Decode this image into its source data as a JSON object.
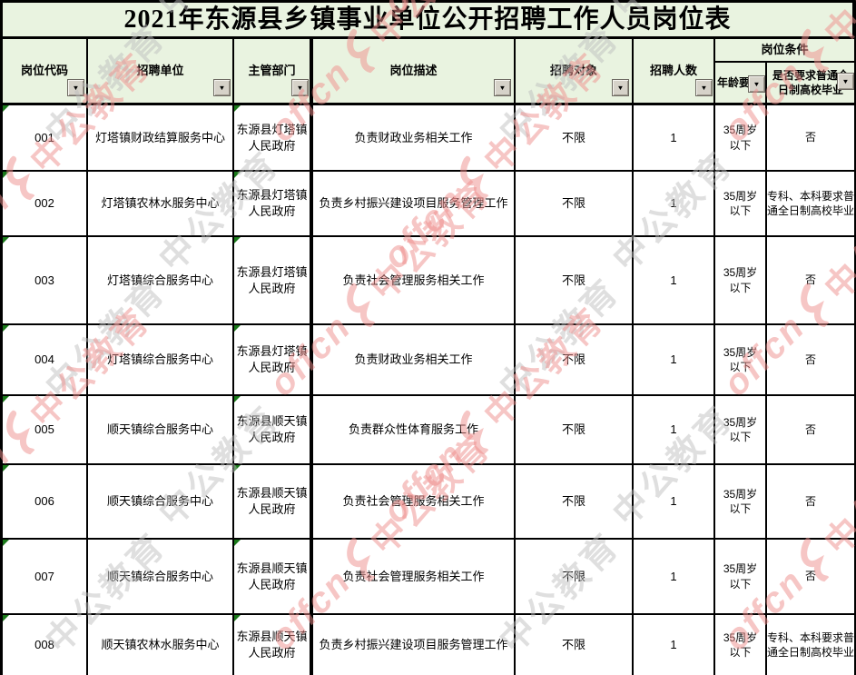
{
  "title": "2021年东源县乡镇事业单位公开招聘工作人员岗位表",
  "columns": {
    "code": "岗位代码",
    "unit": "招聘单位",
    "dept": "主管部门",
    "desc": "岗位描述",
    "target": "招聘对象",
    "count": "招聘人数",
    "cond_group": "岗位条件",
    "age": "年龄要求",
    "fulltime": "是否要求普通全日制高校毕业"
  },
  "rows": [
    {
      "code": "001",
      "unit": "灯塔镇财政结算服务中心",
      "dept": "东源县灯塔镇人民政府",
      "desc": "负责财政业务相关工作",
      "target": "不限",
      "count": "1",
      "age": "35周岁\n以下",
      "fulltime": "否"
    },
    {
      "code": "002",
      "unit": "灯塔镇农林水服务中心",
      "dept": "东源县灯塔镇人民政府",
      "desc": "负责乡村振兴建设项目服务管理工作",
      "target": "不限",
      "count": "1",
      "age": "35周岁\n以下",
      "fulltime": "专科、本科要求普通全日制高校毕业"
    },
    {
      "code": "003",
      "unit": "灯塔镇综合服务中心",
      "dept": "东源县灯塔镇人民政府",
      "desc": "负责社会管理服务相关工作",
      "target": "不限",
      "count": "1",
      "age": "35周岁\n以下",
      "fulltime": "否"
    },
    {
      "code": "004",
      "unit": "灯塔镇综合服务中心",
      "dept": "东源县灯塔镇人民政府",
      "desc": "负责财政业务相关工作",
      "target": "不限",
      "count": "1",
      "age": "35周岁\n以下",
      "fulltime": "否"
    },
    {
      "code": "005",
      "unit": "顺天镇综合服务中心",
      "dept": "东源县顺天镇人民政府",
      "desc": "负责群众性体育服务工作",
      "target": "不限",
      "count": "1",
      "age": "35周岁\n以下",
      "fulltime": "否"
    },
    {
      "code": "006",
      "unit": "顺天镇综合服务中心",
      "dept": "东源县顺天镇人民政府",
      "desc": "负责社会管理服务相关工作",
      "target": "不限",
      "count": "1",
      "age": "35周岁\n以下",
      "fulltime": "否"
    },
    {
      "code": "007",
      "unit": "顺天镇综合服务中心",
      "dept": "东源县顺天镇人民政府",
      "desc": "负责社会管理服务相关工作",
      "target": "不限",
      "count": "1",
      "age": "35周岁\n以下",
      "fulltime": "否"
    },
    {
      "code": "008",
      "unit": "顺天镇农林水服务中心",
      "dept": "东源县顺天镇人民政府",
      "desc": "负责乡村振兴建设项目服务管理工作",
      "target": "不限",
      "count": "1",
      "age": "35周岁\n以下",
      "fulltime": "专科、本科要求普通全日制高校毕业"
    }
  ],
  "icons": {
    "dropdown_arrow": "▼"
  },
  "watermark": {
    "brand_latin": "offcn",
    "brand_cn": "中公教育"
  },
  "colors": {
    "header_bg": "#e9f3e0",
    "border": "#000000",
    "flag_green": "#1b7a1b",
    "watermark_red": "#ef8e8c",
    "watermark_gray": "#bdbdbd"
  }
}
